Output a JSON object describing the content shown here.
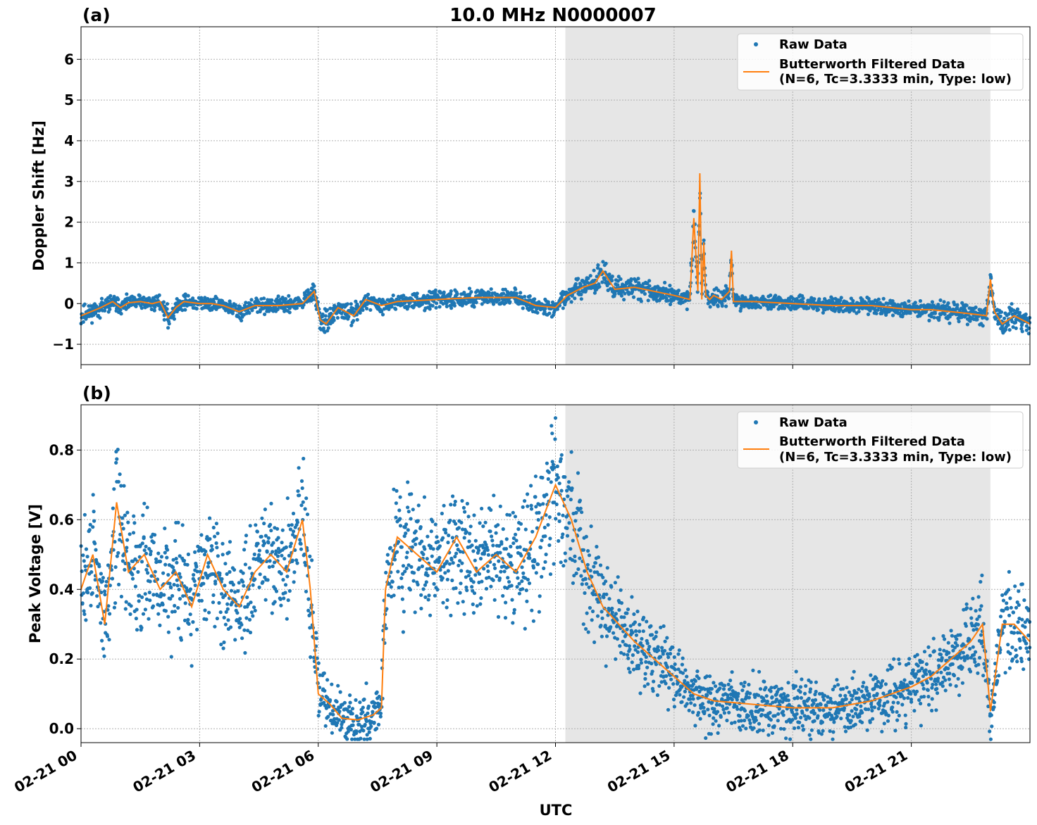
{
  "figure": {
    "title": "10.0 MHz N0000007",
    "xlabel": "UTC",
    "colors": {
      "raw": "#1f77b4",
      "filtered": "#ff7f0e",
      "shade": "#e6e6e6"
    }
  },
  "chart_data": [
    {
      "type": "scatter",
      "panel_label": "(a)",
      "ylabel": "Doppler Shift [Hz]",
      "xlim": [
        0,
        24
      ],
      "ylim": [
        -1.5,
        6.8
      ],
      "x_ticks": [
        0,
        3,
        6,
        9,
        12,
        15,
        18,
        21
      ],
      "x_tick_labels": [
        "02-21 00",
        "02-21 03",
        "02-21 06",
        "02-21 09",
        "02-21 12",
        "02-21 15",
        "02-21 18",
        "02-21 21"
      ],
      "y_ticks": [
        -1,
        0,
        1,
        2,
        3,
        4,
        5,
        6
      ],
      "y_tick_labels": [
        "−1",
        "0",
        "1",
        "2",
        "3",
        "4",
        "5",
        "6"
      ],
      "shaded_region": [
        12.25,
        23.0
      ],
      "grid": true,
      "legend_placement": "upper right",
      "legend": [
        "Raw Data",
        "Butterworth Filtered Data",
        "(N=6, Tc=3.3333 min, Type: low)"
      ],
      "series": [
        {
          "name": "Butterworth Filtered Data",
          "x": [
            0,
            0.5,
            0.8,
            1.0,
            1.2,
            1.5,
            1.8,
            2.0,
            2.2,
            2.4,
            2.6,
            3.0,
            3.3,
            3.6,
            4.0,
            4.4,
            5.0,
            5.6,
            5.9,
            6.05,
            6.2,
            6.5,
            6.9,
            7.2,
            7.6,
            8.0,
            9.0,
            10.0,
            11.0,
            11.5,
            12.0,
            12.3,
            12.7,
            13.0,
            13.2,
            13.5,
            14.0,
            15.0,
            15.4,
            15.5,
            15.6,
            15.65,
            15.7,
            15.75,
            15.8,
            15.9,
            16.0,
            16.2,
            16.4,
            16.45,
            16.5,
            17.0,
            18.0,
            19.0,
            20.0,
            21.0,
            21.5,
            22.0,
            22.5,
            22.9,
            23.0,
            23.1,
            23.3,
            23.6,
            24.0
          ],
          "y": [
            -0.3,
            -0.1,
            0.05,
            -0.1,
            0.02,
            0.05,
            0.0,
            0.05,
            -0.35,
            -0.1,
            0.05,
            0.0,
            0.0,
            -0.05,
            -0.2,
            -0.05,
            -0.05,
            0.0,
            0.3,
            -0.4,
            -0.5,
            -0.1,
            -0.3,
            0.1,
            -0.05,
            0.05,
            0.1,
            0.15,
            0.15,
            -0.05,
            -0.1,
            0.2,
            0.4,
            0.5,
            0.8,
            0.35,
            0.4,
            0.2,
            0.1,
            2.1,
            0.3,
            3.2,
            0.1,
            1.5,
            0.2,
            0.1,
            0.2,
            0.1,
            0.3,
            1.3,
            0.05,
            0.05,
            0.0,
            -0.05,
            -0.05,
            -0.15,
            -0.15,
            -0.2,
            -0.25,
            -0.3,
            0.6,
            -0.2,
            -0.5,
            -0.3,
            -0.5
          ]
        }
      ]
    },
    {
      "type": "scatter",
      "panel_label": "(b)",
      "ylabel": "Peak Voltage [V]",
      "xlim": [
        0,
        24
      ],
      "ylim": [
        -0.04,
        0.93
      ],
      "x_ticks": [
        0,
        3,
        6,
        9,
        12,
        15,
        18,
        21
      ],
      "x_tick_labels": [
        "02-21 00",
        "02-21 03",
        "02-21 06",
        "02-21 09",
        "02-21 12",
        "02-21 15",
        "02-21 18",
        "02-21 21"
      ],
      "y_ticks": [
        0.0,
        0.2,
        0.4,
        0.6,
        0.8
      ],
      "y_tick_labels": [
        "0.0",
        "0.2",
        "0.4",
        "0.6",
        "0.8"
      ],
      "shaded_region": [
        12.25,
        23.0
      ],
      "grid": true,
      "legend_placement": "upper right",
      "legend": [
        "Raw Data",
        "Butterworth Filtered Data",
        "(N=6, Tc=3.3333 min, Type: low)"
      ],
      "series": [
        {
          "name": "Butterworth Filtered Data",
          "x": [
            0,
            0.3,
            0.6,
            0.9,
            1.2,
            1.6,
            2.0,
            2.4,
            2.8,
            3.2,
            3.6,
            4.0,
            4.4,
            4.8,
            5.2,
            5.6,
            5.8,
            6.0,
            6.3,
            6.6,
            7.0,
            7.4,
            7.6,
            7.7,
            8.0,
            8.5,
            9.0,
            9.5,
            10.0,
            10.5,
            11.0,
            11.5,
            12.0,
            12.4,
            12.8,
            13.2,
            13.6,
            14.0,
            14.5,
            15.0,
            15.5,
            16.0,
            17.0,
            18.0,
            19.0,
            20.0,
            20.5,
            21.0,
            21.5,
            22.0,
            22.5,
            22.8,
            23.0,
            23.3,
            23.6,
            24.0
          ],
          "y": [
            0.4,
            0.5,
            0.3,
            0.65,
            0.45,
            0.5,
            0.4,
            0.45,
            0.35,
            0.5,
            0.4,
            0.35,
            0.45,
            0.5,
            0.45,
            0.6,
            0.4,
            0.1,
            0.07,
            0.03,
            0.025,
            0.04,
            0.06,
            0.4,
            0.55,
            0.5,
            0.45,
            0.55,
            0.45,
            0.5,
            0.45,
            0.55,
            0.7,
            0.6,
            0.45,
            0.35,
            0.3,
            0.25,
            0.2,
            0.15,
            0.1,
            0.08,
            0.07,
            0.06,
            0.06,
            0.08,
            0.1,
            0.12,
            0.15,
            0.2,
            0.25,
            0.3,
            0.05,
            0.3,
            0.3,
            0.25
          ]
        }
      ]
    }
  ]
}
